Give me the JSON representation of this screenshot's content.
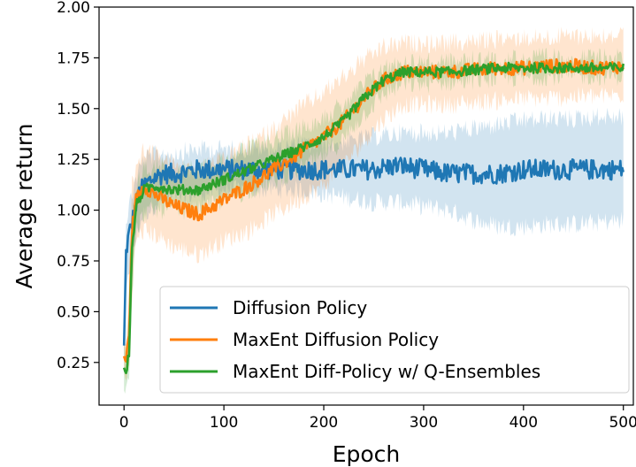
{
  "chart_data": {
    "type": "line",
    "title": "",
    "xlabel": "Epoch",
    "ylabel": "Average return",
    "xlim": [
      -25,
      510
    ],
    "ylim": [
      0.04,
      2.0
    ],
    "xticks": [
      0,
      100,
      200,
      300,
      400,
      500
    ],
    "yticks": [
      0.25,
      0.5,
      0.75,
      1.0,
      1.25,
      1.5,
      1.75,
      2.0
    ],
    "ytick_labels": [
      "0.25",
      "0.50",
      "0.75",
      "1.00",
      "1.25",
      "1.50",
      "1.75",
      "2.00"
    ],
    "grid": false,
    "legend_position": "lower-right",
    "shaded_band": "variance around mean",
    "series": [
      {
        "name": "Diffusion Policy",
        "color": "#1f77b4",
        "x": [
          0,
          2,
          5,
          10,
          15,
          20,
          30,
          40,
          50,
          75,
          100,
          125,
          150,
          175,
          200,
          225,
          250,
          275,
          300,
          325,
          350,
          375,
          400,
          425,
          450,
          475,
          500
        ],
        "values": [
          0.33,
          0.8,
          0.88,
          0.98,
          1.08,
          1.12,
          1.16,
          1.18,
          1.18,
          1.2,
          1.2,
          1.2,
          1.2,
          1.2,
          1.2,
          1.2,
          1.2,
          1.22,
          1.2,
          1.18,
          1.18,
          1.18,
          1.2,
          1.2,
          1.2,
          1.2,
          1.2
        ],
        "band_low": [
          0.25,
          0.55,
          0.7,
          0.82,
          0.92,
          0.98,
          1.02,
          1.05,
          1.06,
          1.08,
          1.1,
          1.1,
          1.1,
          1.1,
          1.08,
          1.06,
          1.04,
          1.04,
          1.02,
          1.0,
          0.95,
          0.92,
          0.92,
          0.93,
          0.93,
          0.94,
          0.95
        ],
        "band_high": [
          0.4,
          0.95,
          1.02,
          1.12,
          1.2,
          1.25,
          1.27,
          1.28,
          1.28,
          1.3,
          1.3,
          1.3,
          1.3,
          1.32,
          1.32,
          1.34,
          1.36,
          1.38,
          1.38,
          1.38,
          1.4,
          1.42,
          1.44,
          1.45,
          1.45,
          1.46,
          1.46
        ]
      },
      {
        "name": "MaxEnt Diffusion Policy",
        "color": "#ff7f0e",
        "x": [
          0,
          2,
          5,
          8,
          12,
          20,
          30,
          50,
          75,
          100,
          125,
          150,
          175,
          200,
          220,
          240,
          260,
          280,
          300,
          325,
          350,
          375,
          400,
          425,
          450,
          475,
          500
        ],
        "values": [
          0.28,
          0.25,
          0.4,
          0.9,
          1.05,
          1.12,
          1.08,
          1.02,
          0.98,
          1.05,
          1.12,
          1.2,
          1.28,
          1.36,
          1.44,
          1.55,
          1.64,
          1.68,
          1.68,
          1.68,
          1.69,
          1.7,
          1.7,
          1.71,
          1.71,
          1.7,
          1.71
        ],
        "band_low": [
          0.2,
          0.15,
          0.25,
          0.6,
          0.85,
          0.9,
          0.88,
          0.82,
          0.78,
          0.85,
          0.9,
          0.98,
          1.05,
          1.12,
          1.22,
          1.34,
          1.45,
          1.52,
          1.52,
          1.52,
          1.53,
          1.54,
          1.55,
          1.55,
          1.56,
          1.56,
          1.57
        ],
        "band_high": [
          0.36,
          0.35,
          0.6,
          1.12,
          1.22,
          1.3,
          1.28,
          1.22,
          1.2,
          1.25,
          1.32,
          1.4,
          1.5,
          1.58,
          1.66,
          1.74,
          1.8,
          1.82,
          1.82,
          1.82,
          1.83,
          1.84,
          1.85,
          1.85,
          1.86,
          1.86,
          1.86
        ]
      },
      {
        "name": "MaxEnt Diff-Policy w/ Q-Ensembles",
        "color": "#2ca02c",
        "x": [
          0,
          2,
          5,
          8,
          12,
          20,
          30,
          50,
          75,
          100,
          125,
          150,
          175,
          200,
          220,
          240,
          260,
          280,
          300,
          325,
          350,
          375,
          400,
          425,
          450,
          475,
          500
        ],
        "values": [
          0.22,
          0.2,
          0.3,
          0.8,
          1.02,
          1.1,
          1.12,
          1.1,
          1.1,
          1.15,
          1.2,
          1.25,
          1.3,
          1.36,
          1.44,
          1.55,
          1.64,
          1.68,
          1.68,
          1.68,
          1.69,
          1.7,
          1.7,
          1.7,
          1.7,
          1.7,
          1.7
        ],
        "band_low": [
          0.15,
          0.12,
          0.2,
          0.6,
          0.9,
          0.98,
          1.0,
          1.0,
          1.0,
          1.05,
          1.1,
          1.14,
          1.2,
          1.26,
          1.35,
          1.47,
          1.57,
          1.62,
          1.62,
          1.63,
          1.64,
          1.65,
          1.65,
          1.66,
          1.66,
          1.66,
          1.66
        ],
        "band_high": [
          0.3,
          0.28,
          0.4,
          0.95,
          1.12,
          1.2,
          1.22,
          1.2,
          1.2,
          1.25,
          1.3,
          1.35,
          1.4,
          1.46,
          1.52,
          1.62,
          1.7,
          1.73,
          1.73,
          1.73,
          1.74,
          1.74,
          1.75,
          1.75,
          1.75,
          1.75,
          1.75
        ]
      }
    ]
  }
}
